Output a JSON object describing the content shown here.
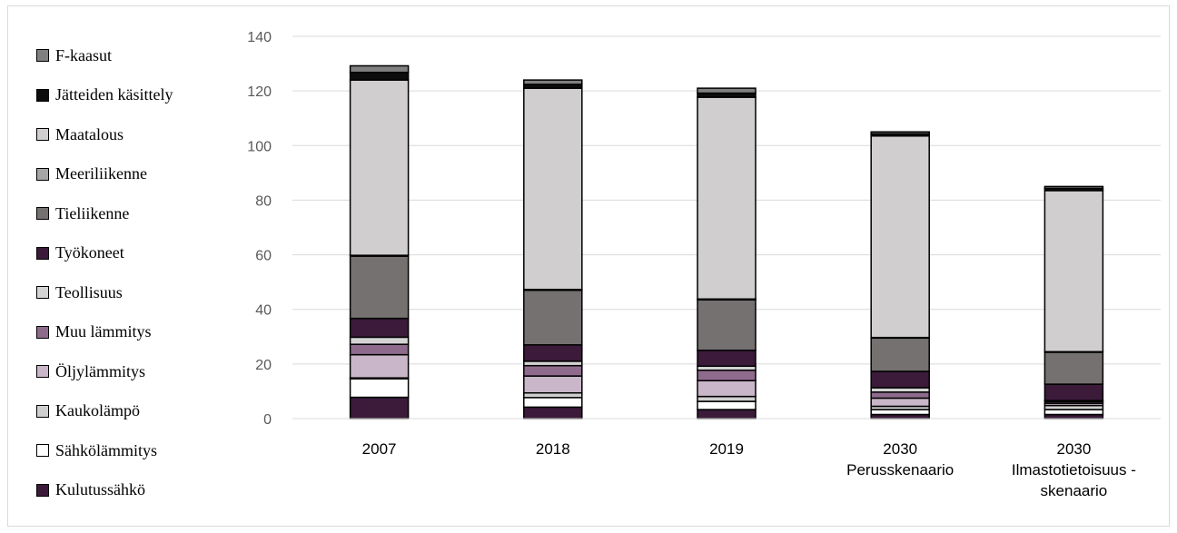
{
  "chart_data": {
    "type": "bar",
    "stacked": true,
    "categories": [
      "2007",
      "2018",
      "2019",
      "2030\nPerusskenaario",
      "2030\nIlmastotietoisuus -\nskenaario"
    ],
    "ylim": [
      0,
      140
    ],
    "yticks": [
      0,
      20,
      40,
      60,
      80,
      100,
      120,
      140
    ],
    "grid": true,
    "legend_position": "left",
    "series": [
      {
        "name": "Kulutussähkö",
        "color": "#3b1a3a",
        "values": [
          7.8,
          4.2,
          3.3,
          1.5,
          1.5
        ]
      },
      {
        "name": "Sähkölämmitys",
        "color": "#ffffff",
        "values": [
          6.8,
          3.5,
          3.0,
          1.8,
          1.8
        ]
      },
      {
        "name": "Kaukolämpö",
        "color": "#cfcfcf",
        "values": [
          0.3,
          1.7,
          1.8,
          1.2,
          1.5
        ]
      },
      {
        "name": "Öljylämmitys",
        "color": "#c9b6c8",
        "values": [
          8.5,
          6.2,
          5.8,
          3.0,
          0.8
        ]
      },
      {
        "name": "Muu lämmitys",
        "color": "#8e6b8d",
        "values": [
          3.8,
          3.8,
          3.8,
          2.2,
          0.6
        ]
      },
      {
        "name": "Teollisuus",
        "color": "#d4d4d4",
        "values": [
          2.6,
          1.6,
          1.5,
          1.6,
          0.4
        ]
      },
      {
        "name": "Työkoneet",
        "color": "#3b1a3a",
        "values": [
          6.9,
          6.0,
          5.8,
          6.0,
          6.0
        ]
      },
      {
        "name": "Tieliikenne",
        "color": "#757171",
        "values": [
          22.8,
          20.0,
          18.5,
          12.2,
          11.7
        ]
      },
      {
        "name": "Meeriliikenne",
        "color": "#a6a6a6",
        "values": [
          0.3,
          0.3,
          0.3,
          0.2,
          0.2
        ]
      },
      {
        "name": "Maatalous",
        "color": "#d0cece",
        "values": [
          64.2,
          73.7,
          73.9,
          73.8,
          59.0
        ]
      },
      {
        "name": "Jätteiden käsittely",
        "color": "#0d0d0d",
        "values": [
          2.8,
          1.4,
          1.5,
          0.8,
          0.8
        ]
      },
      {
        "name": "F-kaasut",
        "color": "#808080",
        "values": [
          2.4,
          1.6,
          1.8,
          0.7,
          0.7
        ]
      }
    ]
  }
}
